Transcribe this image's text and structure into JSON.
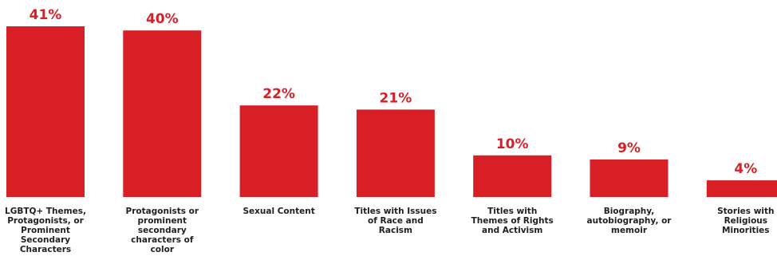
{
  "chart_data": {
    "type": "bar",
    "categories": [
      [
        "LGBTQ+ Themes,",
        "Protagonists, or",
        "Prominent",
        "Secondary",
        "Characters"
      ],
      [
        "Protagonists or",
        "prominent",
        "secondary",
        "characters of",
        "color"
      ],
      [
        "Sexual Content"
      ],
      [
        "Titles with Issues",
        "of Race and",
        "Racism"
      ],
      [
        "Titles with",
        "Themes of Rights",
        "and Activism"
      ],
      [
        "Biography,",
        "autobiography, or",
        "memoir"
      ],
      [
        "Stories with",
        "Religious",
        "Minorities"
      ]
    ],
    "values": [
      41,
      40,
      22,
      21,
      10,
      9,
      4
    ],
    "value_labels": [
      "41%",
      "40%",
      "22%",
      "21%",
      "10%",
      "9%",
      "4%"
    ],
    "bar_color": "#d81f26",
    "label_color": "#d81f26",
    "text_color": "#231f20",
    "ylim": [
      0,
      41
    ],
    "grid": false,
    "axes_visible": false
  }
}
